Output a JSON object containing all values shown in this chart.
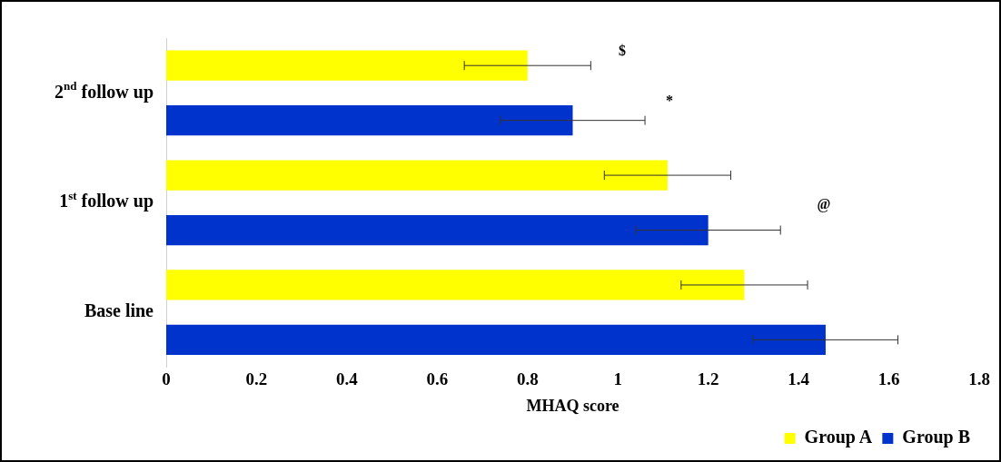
{
  "chart_data": {
    "type": "bar",
    "orientation": "horizontal",
    "xlabel": "MHAQ score",
    "categories": [
      "2$^{nd}$ follow up",
      "1$^{st}$ follow up",
      "Base line"
    ],
    "series": [
      {
        "name": "Group A",
        "color": "#ffff00",
        "values": [
          0.8,
          1.11,
          1.28
        ],
        "errors": [
          0.14,
          0.14,
          0.14
        ]
      },
      {
        "name": "Group B",
        "color": "#0033cc",
        "values": [
          0.9,
          1.2,
          1.46
        ],
        "errors": [
          0.16,
          0.16,
          0.16
        ]
      }
    ],
    "xlim": [
      0,
      1.8
    ],
    "xticks": [
      0,
      0.2,
      0.4,
      0.6,
      0.8,
      1,
      1.2,
      1.4,
      1.6,
      1.8
    ],
    "grid": false,
    "legend": "bottom right",
    "annotations": [
      "$",
      "*",
      "@"
    ]
  }
}
